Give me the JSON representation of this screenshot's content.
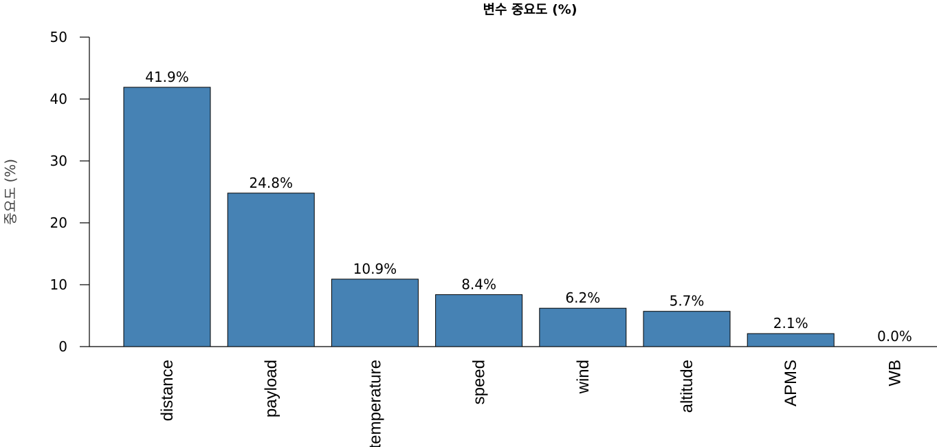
{
  "chart_data": {
    "type": "bar",
    "title": "변수 중요도 (%)",
    "xlabel": "",
    "ylabel": "중요도 (%)",
    "ylim": [
      0,
      50
    ],
    "yticks": [
      0,
      10,
      20,
      30,
      40,
      50
    ],
    "categories": [
      "distance",
      "payload",
      "temperature",
      "speed",
      "wind",
      "altitude",
      "APMS",
      "WB"
    ],
    "values": [
      41.9,
      24.8,
      10.9,
      8.4,
      6.2,
      5.7,
      2.1,
      0.0
    ],
    "data_labels": [
      "41.9%",
      "24.8%",
      "10.9%",
      "8.4%",
      "6.2%",
      "5.7%",
      "2.1%",
      "0.0%"
    ],
    "bar_color": "#4682B4",
    "grid": false,
    "legend": "none"
  }
}
